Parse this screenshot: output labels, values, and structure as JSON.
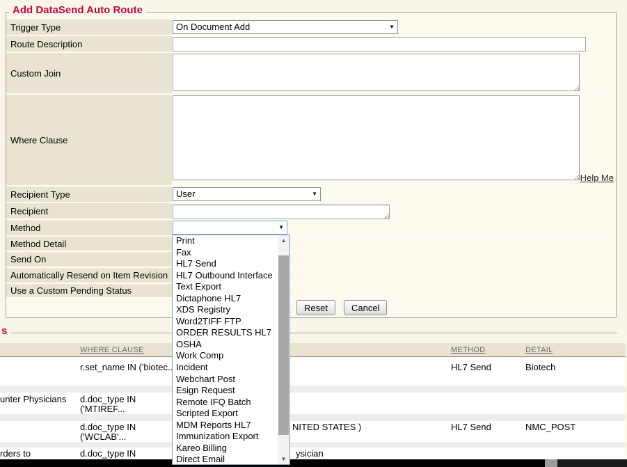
{
  "form": {
    "legend": "Add DataSend Auto Route",
    "rows": [
      {
        "label": "Trigger Type",
        "value": "On Document Add"
      },
      {
        "label": "Route Description",
        "value": ""
      },
      {
        "label": "Custom Join",
        "value": ""
      },
      {
        "label": "Where Clause",
        "value": "",
        "help_link": "Help Me"
      },
      {
        "label": "Recipient Type",
        "value": "User"
      },
      {
        "label": "Recipient",
        "value": ""
      },
      {
        "label": "Method",
        "value": ""
      },
      {
        "label": "Method Detail"
      },
      {
        "label": "Send On"
      },
      {
        "label": "Automatically Resend on Item Revision"
      },
      {
        "label": "Use a Custom Pending Status"
      }
    ],
    "buttons": [
      {
        "label": "Reset"
      },
      {
        "label": "Cancel"
      }
    ]
  },
  "method_dropdown": {
    "options": [
      "Print",
      "Fax",
      "HL7 Send",
      "HL7 Outbound Interface",
      "Text Export",
      "Dictaphone HL7",
      "XDS Registry",
      "Word2TIFF FTP",
      "ORDER RESULTS HL7",
      "OSHA",
      "Work Comp",
      "Incident",
      "Webchart Post",
      "Esign Request",
      "Remote IFQ Batch",
      "Scripted Export",
      "MDM Reports HL7",
      "Immunization Export",
      "Kareo Billing",
      "Direct Email"
    ]
  },
  "routes_section": {
    "legend": "s",
    "columns": [
      "WHERE CLAUSE",
      "METHOD",
      "DETAIL"
    ],
    "rows": [
      {
        "name": "",
        "where": "r.set_name IN ('biotec...",
        "recipient": "",
        "method": "HL7 Send",
        "detail": "Biotech"
      },
      {
        "name": "unter Physicians",
        "where": "d.doc_type IN ('MTIREF...",
        "recipient": "",
        "method": "",
        "detail": ""
      },
      {
        "name": "",
        "where": "d.doc_type IN ('WCLAB'...",
        "recipient": "NITED STATES )",
        "method": "HL7 Send",
        "detail": "NMC_POST"
      },
      {
        "name": "rders to",
        "where": "d.doc_type IN ('REFORD...",
        "recipient": "ysician",
        "method": "",
        "detail": ""
      }
    ]
  },
  "colors": {
    "accent": "#bd0a43",
    "label_bg": "#e9e4d2",
    "page_bg": "#f9f5e8"
  }
}
